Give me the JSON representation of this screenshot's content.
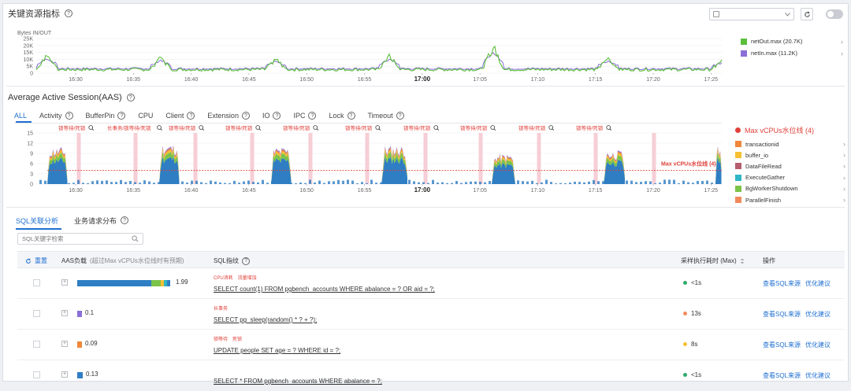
{
  "header": {
    "title": "关键资源指标",
    "time_range": "",
    "auto_refresh_label": ""
  },
  "net_chart": {
    "y_axis_title": "Bytes IN/OUT",
    "y_ticks": [
      "25K",
      "20K",
      "15K",
      "10K",
      "5K",
      "0"
    ],
    "x_ticks": [
      "16:30",
      "16:35",
      "16:40",
      "16:45",
      "16:50",
      "16:55",
      "17:00",
      "17:05",
      "17:10",
      "17:15",
      "17:20",
      "17:25"
    ],
    "legend": [
      {
        "name": "netOut.max (20.7K)",
        "color": "#5bbf3b"
      },
      {
        "name": "netIn.max (11.2K)",
        "color": "#8a6fd6"
      }
    ]
  },
  "aas": {
    "title": "Average Active Session(AAS)",
    "tabs": [
      {
        "label": "ALL",
        "help": false
      },
      {
        "label": "Activity",
        "help": true
      },
      {
        "label": "BufferPin",
        "help": true
      },
      {
        "label": "CPU",
        "help": false
      },
      {
        "label": "Client",
        "help": true
      },
      {
        "label": "Extension",
        "help": true
      },
      {
        "label": "IO",
        "help": true
      },
      {
        "label": "IPC",
        "help": true
      },
      {
        "label": "Lock",
        "help": true
      },
      {
        "label": "Timeout",
        "help": true
      }
    ],
    "y_ticks": [
      "15",
      "12",
      "9",
      "6",
      "3",
      "0"
    ],
    "x_ticks": [
      "16:30",
      "16:35",
      "16:40",
      "16:45",
      "16:50",
      "16:55",
      "17:00",
      "17:05",
      "17:10",
      "17:15",
      "17:20",
      "17:25"
    ],
    "annotations": [
      "锁等待/死锁",
      "长事务/锁等待/死锁",
      "锁等待/死锁",
      "锁等待/死锁",
      "锁等待/死锁",
      "锁等待/死锁",
      "锁等待/死锁",
      "锁等待/死锁",
      "锁等待/死锁",
      "锁等待/死锁"
    ],
    "threshold_label": "Max vCPUs水位线 (4)",
    "threshold_value": 4,
    "legend_header": "Max vCPUs水位线 (4)",
    "legend": [
      {
        "name": "transactionid",
        "color": "#f0873a"
      },
      {
        "name": "buffer_io",
        "color": "#f5c033"
      },
      {
        "name": "DataFileRead",
        "color": "#b55e6e"
      },
      {
        "name": "ExecuteGather",
        "color": "#2fb6c6"
      },
      {
        "name": "BgWorkerShutdown",
        "color": "#7cc34a"
      },
      {
        "name": "ParallelFinish",
        "color": "#f08a5d"
      }
    ]
  },
  "sql_section": {
    "tabs": [
      {
        "label": "SQL关联分析",
        "active": true,
        "help": false
      },
      {
        "label": "业务请求分布",
        "active": false,
        "help": true
      }
    ],
    "search_placeholder": "SQL关键字检索",
    "columns": {
      "reset": "重置",
      "aas_load": "AAS负载",
      "aas_load_note": "(超过Max vCPUs水位线时有预期)",
      "sql": "SQL指纹",
      "duration": "采样执行耗时 (Max)",
      "actions": "操作"
    },
    "rows": [
      {
        "load": "1.99",
        "tags": [
          "CPU消耗",
          "流量增加"
        ],
        "sql": "SELECT count(1) FROM pgbench_accounts WHERE abalance = ? OR aid = ?;",
        "duration": "<1s",
        "dot": "#2eaa6b",
        "ops": [
          "查看SQL来源",
          "优化建议"
        ]
      },
      {
        "load": "0.1",
        "tags": [
          "长事务"
        ],
        "sql": "SELECT pg_sleep(random() * ? + ?);",
        "duration": "13s",
        "dot": "#f08a5d",
        "ops": [
          "查看SQL来源",
          "优化建议"
        ]
      },
      {
        "load": "0.09",
        "tags": [
          "锁等待",
          "死锁"
        ],
        "sql": "UPDATE people SET age = ? WHERE id = ?;",
        "duration": "8s",
        "dot": "#f5c033",
        "ops": [
          "查看SQL来源",
          "优化建议"
        ]
      },
      {
        "load": "0.13",
        "tags": [],
        "sql": "SELECT * FROM pgbench_accounts WHERE abalance = ?;",
        "duration": "<1s",
        "dot": "#2eaa6b",
        "ops": [
          "查看SQL来源",
          "优化建议"
        ]
      }
    ]
  }
}
